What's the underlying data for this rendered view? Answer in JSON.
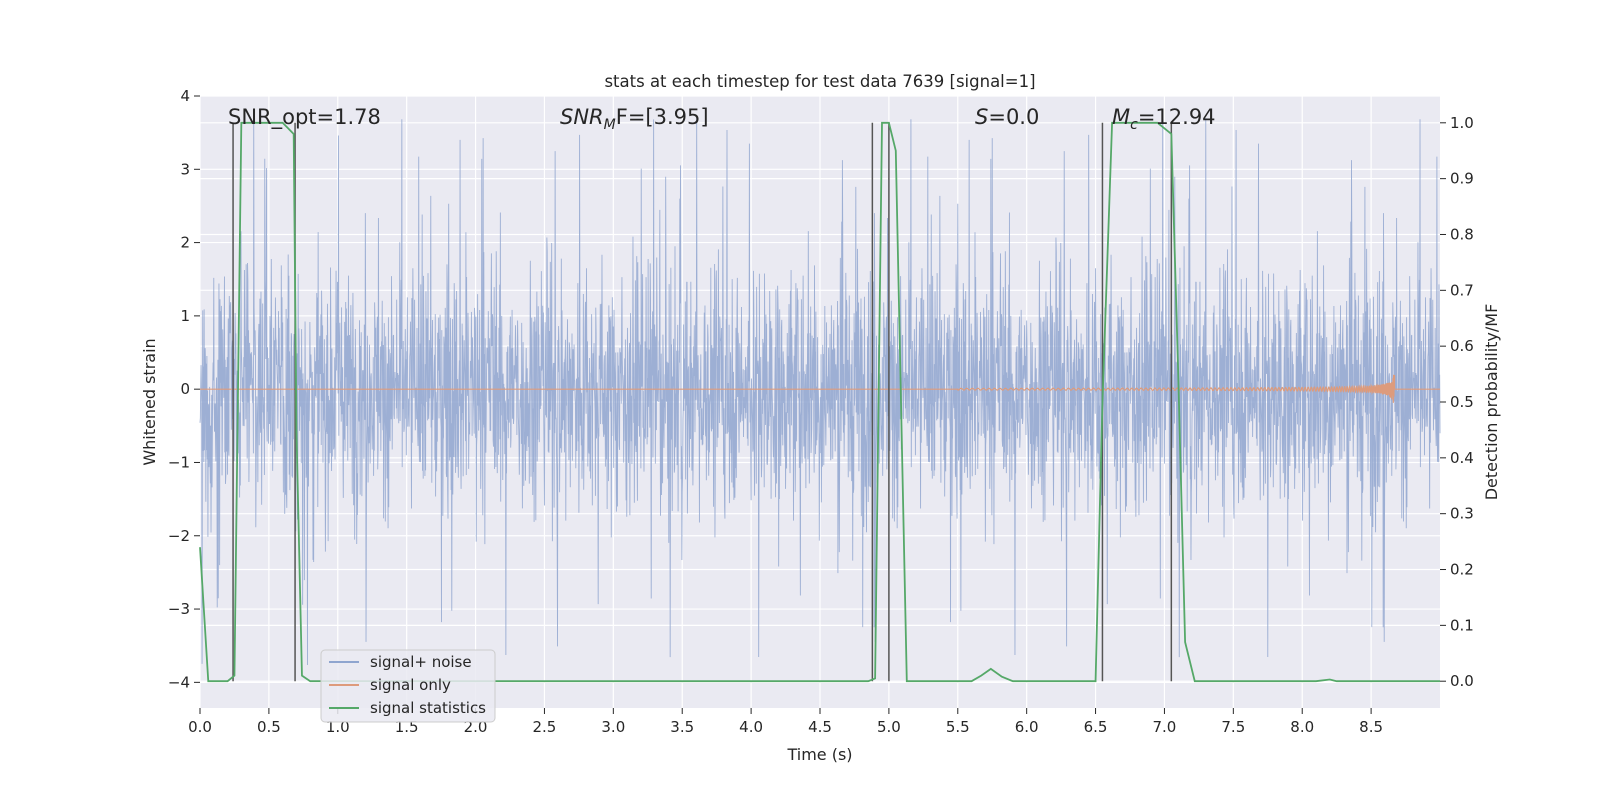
{
  "chart_data": {
    "type": "line",
    "title": "stats at each timestep for test data 7639 [signal=1]",
    "xlabel": "Time (s)",
    "ylabel": "Whitened strain",
    "ylabel_right": "Detection probability/MF",
    "xlim": [
      0.0,
      9.0
    ],
    "ylim": [
      -4.35,
      4.0
    ],
    "ylim_right": [
      -0.048,
      1.048
    ],
    "x_ticks": [
      "0.0",
      "0.5",
      "1.0",
      "1.5",
      "2.0",
      "2.5",
      "3.0",
      "3.5",
      "4.0",
      "4.5",
      "5.0",
      "5.5",
      "6.0",
      "6.5",
      "7.0",
      "7.5",
      "8.0",
      "8.5"
    ],
    "y_ticks": [
      "4",
      "3",
      "2",
      "1",
      "0",
      "−1",
      "−2",
      "−3",
      "−4"
    ],
    "y_ticks_right": [
      "1.0",
      "0.9",
      "0.8",
      "0.7",
      "0.6",
      "0.5",
      "0.4",
      "0.3",
      "0.2",
      "0.1",
      "0.0"
    ],
    "grid": true,
    "legend_position": "lower-left",
    "annotations": {
      "snr_opt": "SNR_opt=1.78",
      "snr_mf_label": "SNR",
      "snr_mf_sub": "M",
      "snr_mf_value": "F=[3.95]",
      "s_label": "S",
      "s_value": "=0.0",
      "mc_label": "M",
      "mc_sub": "c",
      "mc_value": "=12.94"
    },
    "series": [
      {
        "name": "signal+ noise",
        "color": "#8fa5cf",
        "x_range": [
          0.0,
          9.0
        ],
        "typical_amplitude": 1.6,
        "peak_amplitude": 3.8
      },
      {
        "name": "signal only",
        "color": "#dd9b7c",
        "x_range": [
          5.5,
          8.67
        ],
        "chirp_end": 8.67,
        "peak_amplitude": 0.32
      },
      {
        "name": "signal statistics",
        "color": "#55a868",
        "axis": "right",
        "x": [
          0.0,
          0.06,
          0.2,
          0.25,
          0.3,
          0.6,
          0.68,
          0.7,
          0.74,
          0.8,
          4.85,
          4.9,
          4.95,
          5.0,
          5.05,
          5.13,
          5.6,
          5.67,
          5.74,
          5.82,
          5.9,
          6.5,
          6.55,
          6.62,
          6.95,
          7.05,
          7.1,
          7.15,
          7.22,
          7.3,
          8.1,
          8.2,
          8.25,
          9.0
        ],
        "y": [
          0.24,
          0.0,
          0.0,
          0.01,
          1.0,
          1.0,
          0.98,
          0.45,
          0.01,
          0.0,
          0.0,
          0.005,
          1.0,
          1.0,
          0.95,
          0.0,
          0.0,
          0.01,
          0.022,
          0.008,
          0.0,
          0.0,
          0.5,
          1.0,
          1.0,
          0.98,
          0.55,
          0.07,
          0.0,
          0.0,
          0.0,
          0.003,
          0.0,
          0.0
        ]
      }
    ],
    "vertical_lines": [
      {
        "x": 0.24,
        "y_range": [
          0.0,
          1.0
        ]
      },
      {
        "x": 0.69,
        "y_range": [
          0.0,
          1.0
        ]
      },
      {
        "x": 4.88,
        "y_range": [
          0.0,
          1.0
        ]
      },
      {
        "x": 5.0,
        "y_range": [
          0.0,
          1.0
        ]
      },
      {
        "x": 6.55,
        "y_range": [
          0.0,
          1.0
        ]
      },
      {
        "x": 7.05,
        "y_range": [
          0.0,
          1.0
        ]
      }
    ]
  },
  "legend": {
    "items": [
      {
        "label": "signal+ noise",
        "color": "#8fa5cf"
      },
      {
        "label": "signal only",
        "color": "#dd9b7c"
      },
      {
        "label": "signal statistics",
        "color": "#55a868"
      }
    ]
  },
  "colors": {
    "plot_background": "#eaeaf2",
    "grid": "#ffffff",
    "text": "#262626",
    "vline": "#555555"
  }
}
